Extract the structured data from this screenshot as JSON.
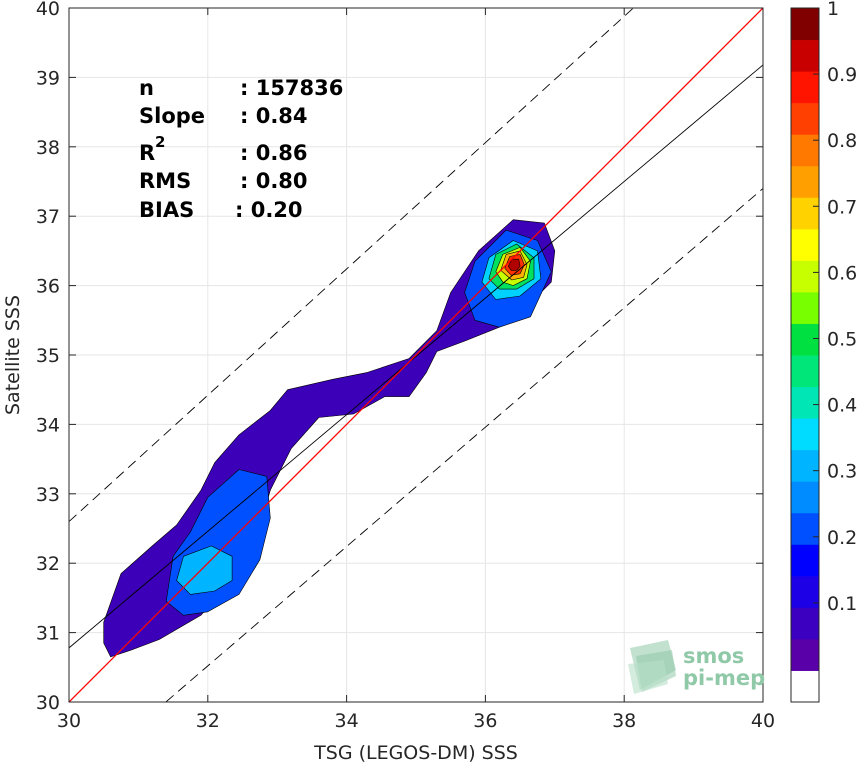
{
  "chart_data": {
    "type": "heatmap",
    "subtype": "density-contour-scatter",
    "xlabel": "TSG (LEGOS-DM) SSS",
    "ylabel": "Satellite SSS",
    "xlim": [
      30,
      40
    ],
    "ylim": [
      30,
      40
    ],
    "x_ticks": [
      "30",
      "32",
      "34",
      "36",
      "38",
      "40"
    ],
    "y_ticks": [
      "30",
      "31",
      "32",
      "33",
      "34",
      "35",
      "36",
      "37",
      "38",
      "39",
      "40"
    ],
    "grid": true,
    "stats": [
      {
        "label": "n",
        "value": ": 157836"
      },
      {
        "label": "Slope",
        "value": ": 0.84"
      },
      {
        "label": "R",
        "superscript": "2",
        "value": ": 0.86"
      },
      {
        "label": "RMS",
        "value": ": 0.80"
      },
      {
        "label": "BIAS",
        "value": ": 0.20"
      }
    ],
    "lines": {
      "identity": {
        "x": [
          30,
          40
        ],
        "y": [
          30,
          40
        ],
        "color": "#ff0000"
      },
      "regression": {
        "x": [
          30,
          40
        ],
        "y": [
          30.78,
          39.18
        ],
        "color": "#000000"
      },
      "upper_bound": {
        "x": [
          30,
          40
        ],
        "y": [
          32.6,
          41.7
        ],
        "color": "#000000",
        "style": "dashed"
      },
      "lower_bound": {
        "x": [
          30,
          40
        ],
        "y": [
          28.8,
          37.4
        ],
        "color": "#000000",
        "style": "dashed"
      }
    },
    "density_levels": [
      {
        "level": 0.05,
        "color": "#3b00b8",
        "points": [
          [
            30.5,
            30.85
          ],
          [
            30.5,
            31.15
          ],
          [
            30.75,
            31.85
          ],
          [
            31.2,
            32.25
          ],
          [
            31.55,
            32.55
          ],
          [
            31.9,
            33.05
          ],
          [
            32.1,
            33.45
          ],
          [
            32.45,
            33.85
          ],
          [
            32.9,
            34.2
          ],
          [
            33.15,
            34.5
          ],
          [
            33.8,
            34.65
          ],
          [
            34.3,
            34.75
          ],
          [
            34.9,
            34.95
          ],
          [
            35.3,
            35.35
          ],
          [
            35.5,
            35.9
          ],
          [
            35.9,
            36.5
          ],
          [
            36.4,
            36.95
          ],
          [
            36.85,
            36.9
          ],
          [
            37.0,
            36.5
          ],
          [
            36.95,
            36.05
          ],
          [
            36.6,
            35.7
          ],
          [
            36.2,
            35.4
          ],
          [
            35.7,
            35.2
          ],
          [
            35.3,
            35.05
          ],
          [
            35.15,
            34.75
          ],
          [
            34.9,
            34.4
          ],
          [
            34.55,
            34.4
          ],
          [
            34.1,
            34.15
          ],
          [
            33.6,
            34.1
          ],
          [
            33.2,
            33.65
          ],
          [
            32.9,
            33.05
          ],
          [
            32.7,
            32.35
          ],
          [
            32.35,
            31.75
          ],
          [
            31.9,
            31.25
          ],
          [
            31.3,
            30.9
          ],
          [
            30.9,
            30.75
          ],
          [
            30.6,
            30.65
          ]
        ]
      },
      {
        "level": 0.2,
        "color": "#0050ff",
        "points": [
          [
            31.4,
            31.45
          ],
          [
            31.5,
            32.1
          ],
          [
            31.75,
            32.45
          ],
          [
            32.0,
            32.95
          ],
          [
            32.45,
            33.35
          ],
          [
            32.85,
            33.25
          ],
          [
            32.9,
            32.65
          ],
          [
            32.75,
            32.05
          ],
          [
            32.45,
            31.55
          ],
          [
            32.0,
            31.3
          ],
          [
            31.65,
            31.25
          ]
        ]
      },
      {
        "level": 0.3,
        "color": "#00b4ff",
        "points": [
          [
            31.55,
            31.75
          ],
          [
            31.65,
            32.1
          ],
          [
            32.05,
            32.25
          ],
          [
            32.35,
            32.1
          ],
          [
            32.35,
            31.75
          ],
          [
            32.1,
            31.6
          ],
          [
            31.75,
            31.55
          ]
        ]
      },
      {
        "level": 0.2,
        "color": "#0050ff",
        "points": [
          [
            35.7,
            35.9
          ],
          [
            35.85,
            36.35
          ],
          [
            36.3,
            36.8
          ],
          [
            36.75,
            36.65
          ],
          [
            36.95,
            36.2
          ],
          [
            36.65,
            35.55
          ],
          [
            36.2,
            35.4
          ],
          [
            35.85,
            35.5
          ]
        ]
      },
      {
        "level": 0.35,
        "color": "#00d2ff",
        "points": [
          [
            35.95,
            36.05
          ],
          [
            36.05,
            36.4
          ],
          [
            36.4,
            36.65
          ],
          [
            36.75,
            36.5
          ],
          [
            36.8,
            36.1
          ],
          [
            36.5,
            35.85
          ],
          [
            36.15,
            35.8
          ]
        ]
      },
      {
        "level": 0.5,
        "color": "#00e060",
        "points": [
          [
            36.05,
            36.1
          ],
          [
            36.15,
            36.45
          ],
          [
            36.45,
            36.6
          ],
          [
            36.7,
            36.4
          ],
          [
            36.7,
            36.1
          ],
          [
            36.45,
            35.95
          ],
          [
            36.2,
            35.95
          ]
        ]
      },
      {
        "level": 0.6,
        "color": "#c8ff00",
        "points": [
          [
            36.15,
            36.2
          ],
          [
            36.25,
            36.45
          ],
          [
            36.5,
            36.55
          ],
          [
            36.65,
            36.35
          ],
          [
            36.6,
            36.1
          ],
          [
            36.4,
            36.0
          ],
          [
            36.25,
            36.05
          ]
        ]
      },
      {
        "level": 0.7,
        "color": "#ffb000",
        "points": [
          [
            36.22,
            36.22
          ],
          [
            36.3,
            36.45
          ],
          [
            36.5,
            36.5
          ],
          [
            36.6,
            36.3
          ],
          [
            36.55,
            36.12
          ],
          [
            36.38,
            36.08
          ]
        ]
      },
      {
        "level": 0.85,
        "color": "#ff3000",
        "points": [
          [
            36.28,
            36.25
          ],
          [
            36.35,
            36.42
          ],
          [
            36.5,
            36.45
          ],
          [
            36.56,
            36.3
          ],
          [
            36.5,
            36.17
          ],
          [
            36.37,
            36.15
          ]
        ]
      },
      {
        "level": 0.95,
        "color": "#b00000",
        "points": [
          [
            36.33,
            36.28
          ],
          [
            36.38,
            36.38
          ],
          [
            36.48,
            36.38
          ],
          [
            36.5,
            36.28
          ],
          [
            36.45,
            36.22
          ],
          [
            36.37,
            36.22
          ]
        ]
      }
    ],
    "colorbar": {
      "ticks": [
        "0.1",
        "0.2",
        "0.3",
        "0.4",
        "0.5",
        "0.6",
        "0.7",
        "0.8",
        "0.9",
        "1"
      ],
      "tick_values": [
        0.1,
        0.2,
        0.3,
        0.4,
        0.5,
        0.6,
        0.7,
        0.8,
        0.9,
        1.0
      ],
      "range": [
        -0.05,
        1.0
      ],
      "bands": [
        "#ffffff",
        "#5a00a8",
        "#3b00c0",
        "#1e00e6",
        "#0000ff",
        "#0050ff",
        "#008cff",
        "#00b4ff",
        "#00dcff",
        "#00e6b4",
        "#00e678",
        "#00e040",
        "#78ff00",
        "#c8ff00",
        "#ffff00",
        "#ffd200",
        "#ffa000",
        "#ff7800",
        "#ff4000",
        "#ff1400",
        "#c80000",
        "#800000"
      ]
    },
    "watermark": {
      "line1": "smos",
      "line2": "pi-mep"
    }
  }
}
